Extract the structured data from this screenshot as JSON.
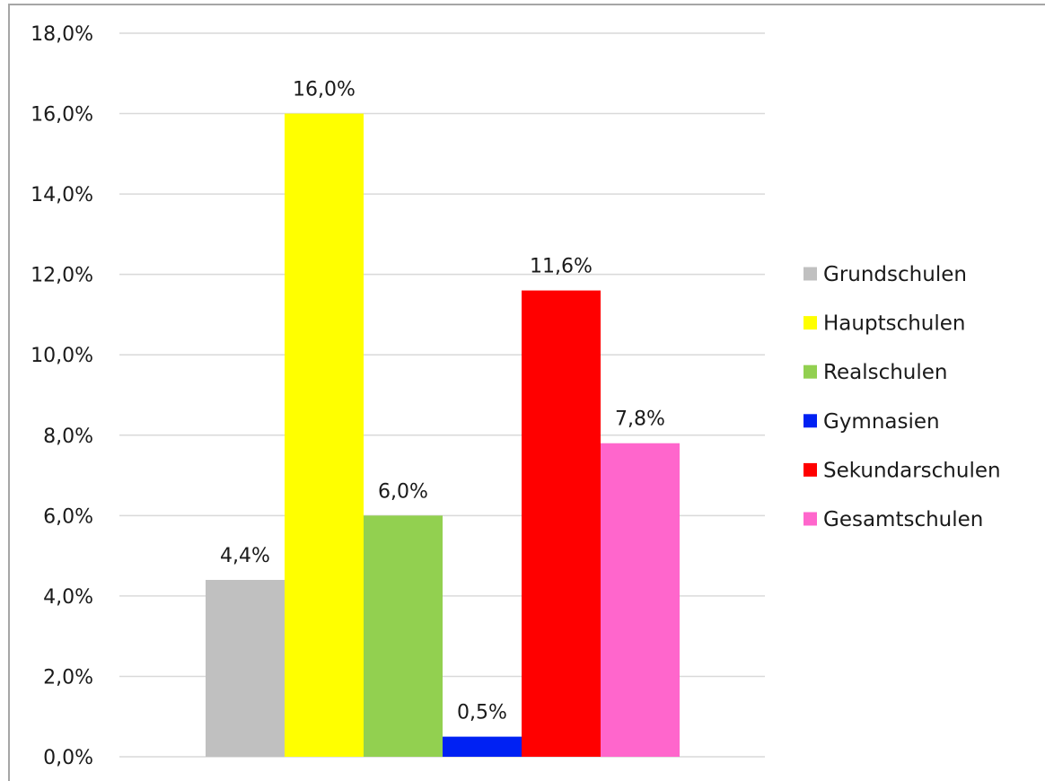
{
  "chart_data": {
    "type": "bar",
    "title": "",
    "xlabel": "",
    "ylabel": "",
    "ylim": [
      0,
      18
    ],
    "y_ticks": [
      "0,0%",
      "2,0%",
      "4,0%",
      "6,0%",
      "8,0%",
      "10,0%",
      "12,0%",
      "14,0%",
      "16,0%",
      "18,0%"
    ],
    "grid": true,
    "legend_position": "right",
    "series": [
      {
        "name": "Grundschulen",
        "value": 4.4,
        "label": "4,4%",
        "color": "#c0c0c0"
      },
      {
        "name": "Hauptschulen",
        "value": 16.0,
        "label": "16,0%",
        "color": "#ffff00"
      },
      {
        "name": "Realschulen",
        "value": 6.0,
        "label": "6,0%",
        "color": "#92d050"
      },
      {
        "name": "Gymnasien",
        "value": 0.5,
        "label": "0,5%",
        "color": "#0021f3"
      },
      {
        "name": "Sekundarschulen",
        "value": 11.6,
        "label": "11,6%",
        "color": "#ff0000"
      },
      {
        "name": "Gesamtschulen",
        "value": 7.8,
        "label": "7,8%",
        "color": "#ff66cc"
      }
    ]
  }
}
